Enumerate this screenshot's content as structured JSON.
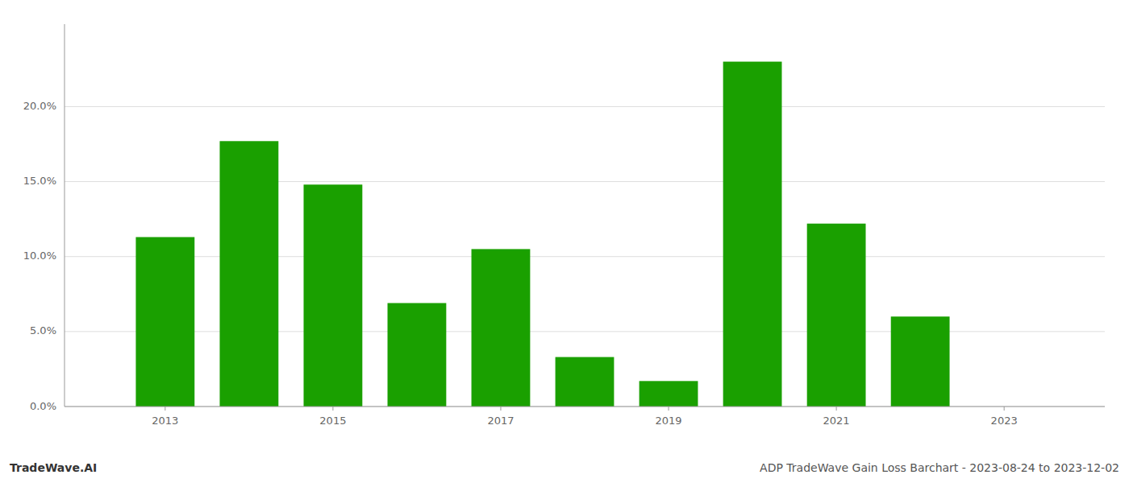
{
  "chart_data": {
    "type": "bar",
    "x": [
      2013,
      2014,
      2015,
      2016,
      2017,
      2018,
      2019,
      2020,
      2021,
      2022,
      2023
    ],
    "values": [
      0.113,
      0.177,
      0.148,
      0.069,
      0.105,
      0.033,
      0.017,
      0.23,
      0.122,
      0.06,
      0.0
    ],
    "color": "#1aa000",
    "xlim": [
      2011.8,
      2024.2
    ],
    "xticks": [
      2013,
      2015,
      2017,
      2019,
      2021,
      2023
    ],
    "ylim": [
      0,
      0.255
    ],
    "yticks": [
      {
        "value": 0.0,
        "label": "0.0%"
      },
      {
        "value": 0.05,
        "label": "5.0%"
      },
      {
        "value": 0.1,
        "label": "10.0%"
      },
      {
        "value": 0.15,
        "label": "15.0%"
      },
      {
        "value": 0.2,
        "label": "20.0%"
      }
    ],
    "grid": true,
    "annotations": [
      "TradeWave.AI",
      "ADP TradeWave Gain Loss Barchart - 2023-08-24 to 2023-12-02"
    ]
  }
}
